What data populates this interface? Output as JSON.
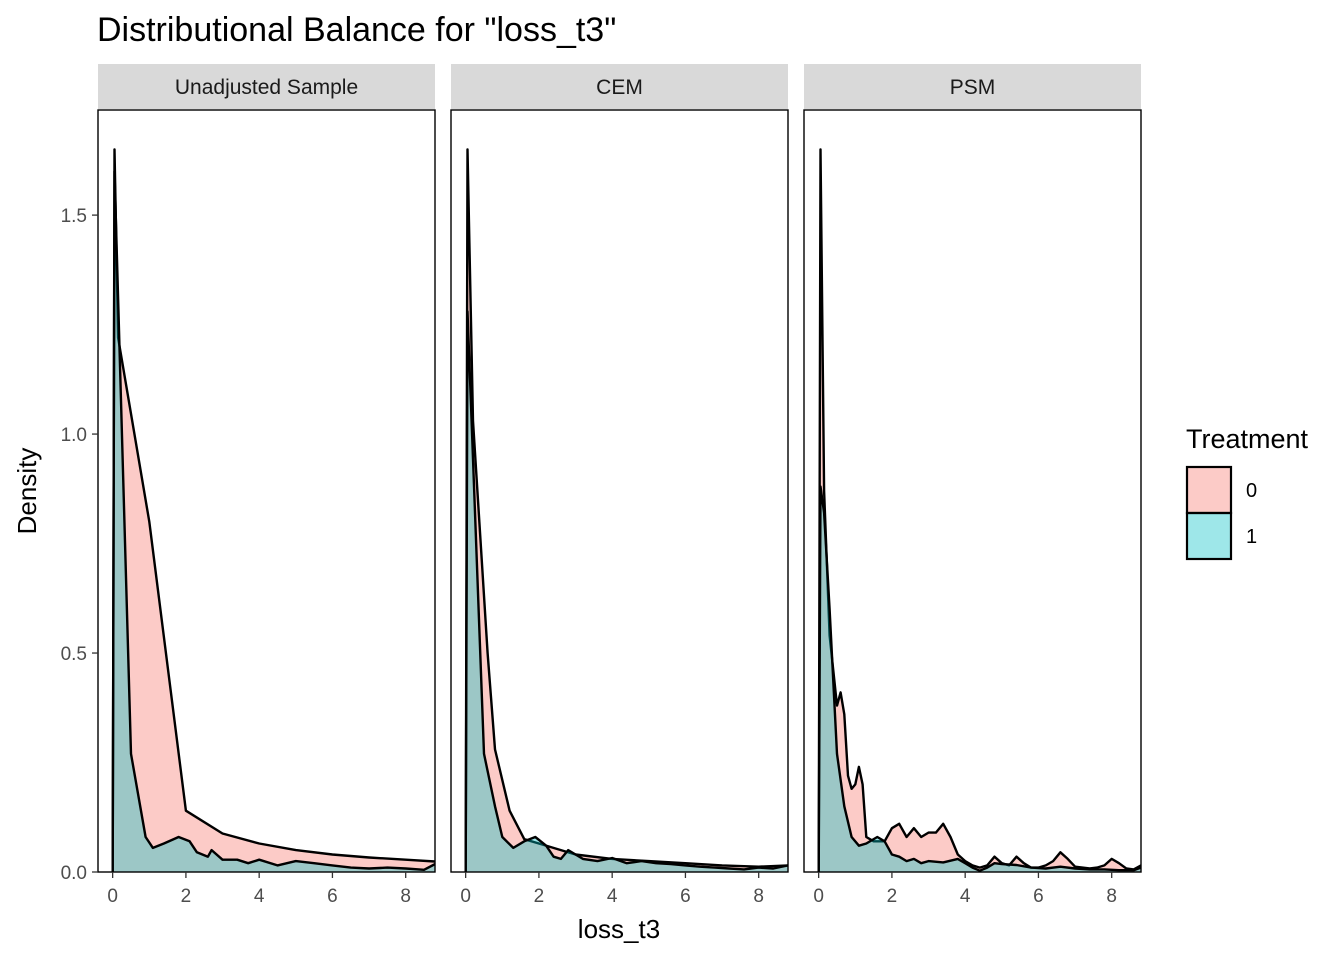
{
  "chart_data": {
    "type": "area",
    "title": "Distributional Balance for \"loss_t3\"",
    "xlabel": "loss_t3",
    "ylabel": "Density",
    "xlim": [
      -0.4,
      8.8
    ],
    "ylim": [
      0,
      1.74
    ],
    "xticks": [
      0,
      2,
      4,
      6,
      8
    ],
    "yticks": [
      0.0,
      0.5,
      1.0,
      1.5
    ],
    "ytick_labels": [
      "0.0",
      "0.5",
      "1.0",
      "1.5"
    ],
    "grid": false,
    "legend": {
      "title": "Treatment",
      "position": "right",
      "entries": [
        {
          "label": "0",
          "color": "#F8766D"
        },
        {
          "label": "1",
          "color": "#00BFC4"
        }
      ]
    },
    "panels": [
      {
        "label": "Unadjusted Sample",
        "series": [
          {
            "name": "0",
            "x": [
              0,
              0.05,
              0.15,
              1,
              2,
              3,
              4,
              5,
              6,
              7,
              8,
              8.8
            ],
            "y": [
              0,
              1.65,
              1.22,
              0.8,
              0.14,
              0.088,
              0.065,
              0.05,
              0.04,
              0.033,
              0.028,
              0.024
            ]
          },
          {
            "name": "1",
            "x": [
              0,
              0.05,
              0.5,
              0.9,
              1.1,
              1.4,
              1.8,
              2.1,
              2.3,
              2.6,
              2.7,
              3.0,
              3.4,
              3.7,
              4.0,
              4.5,
              5.0,
              5.5,
              6.0,
              6.5,
              7.0,
              7.5,
              8.0,
              8.5,
              8.8
            ],
            "y": [
              0,
              1.6,
              0.27,
              0.08,
              0.055,
              0.065,
              0.08,
              0.07,
              0.045,
              0.035,
              0.05,
              0.028,
              0.028,
              0.02,
              0.028,
              0.015,
              0.025,
              0.02,
              0.015,
              0.01,
              0.008,
              0.01,
              0.008,
              0.005,
              0.018
            ]
          }
        ]
      },
      {
        "label": "CEM",
        "series": [
          {
            "name": "0",
            "x": [
              0,
              0.05,
              0.2,
              0.6,
              0.8,
              1.2,
              1.6,
              2.0,
              3.0,
              4.0,
              5.0,
              6.0,
              7.0,
              8.0,
              8.8
            ],
            "y": [
              0,
              1.65,
              1.03,
              0.5,
              0.28,
              0.14,
              0.075,
              0.065,
              0.04,
              0.03,
              0.025,
              0.02,
              0.015,
              0.012,
              0.015
            ]
          },
          {
            "name": "1",
            "x": [
              0,
              0.05,
              0.5,
              0.8,
              1.0,
              1.3,
              1.6,
              1.9,
              2.2,
              2.4,
              2.6,
              2.8,
              3.2,
              3.6,
              4.0,
              4.4,
              4.8,
              5.2,
              5.6,
              6.0,
              6.4,
              6.8,
              7.2,
              7.6,
              8.0,
              8.4,
              8.8
            ],
            "y": [
              0,
              1.28,
              0.27,
              0.15,
              0.08,
              0.055,
              0.07,
              0.08,
              0.06,
              0.035,
              0.03,
              0.05,
              0.03,
              0.025,
              0.032,
              0.02,
              0.025,
              0.02,
              0.018,
              0.015,
              0.012,
              0.01,
              0.008,
              0.006,
              0.01,
              0.008,
              0.015
            ]
          }
        ]
      },
      {
        "label": "PSM",
        "series": [
          {
            "name": "0",
            "x": [
              0,
              0.05,
              0.15,
              0.3,
              0.5,
              0.6,
              0.7,
              0.8,
              0.9,
              1.0,
              1.1,
              1.2,
              1.3,
              1.5,
              1.8,
              2.0,
              2.2,
              2.4,
              2.6,
              2.8,
              3.0,
              3.2,
              3.4,
              3.6,
              3.8,
              4.0,
              4.2,
              4.4,
              4.6,
              4.8,
              5.0,
              5.2,
              5.4,
              5.6,
              5.8,
              6.0,
              6.2,
              6.4,
              6.6,
              6.8,
              7.0,
              7.2,
              7.4,
              7.6,
              7.8,
              8.0,
              8.2,
              8.4,
              8.6,
              8.8
            ],
            "y": [
              0,
              1.65,
              0.87,
              0.54,
              0.38,
              0.41,
              0.36,
              0.22,
              0.19,
              0.2,
              0.24,
              0.2,
              0.08,
              0.07,
              0.07,
              0.1,
              0.11,
              0.08,
              0.1,
              0.08,
              0.09,
              0.09,
              0.11,
              0.08,
              0.04,
              0.025,
              0.015,
              0.01,
              0.015,
              0.035,
              0.02,
              0.015,
              0.035,
              0.02,
              0.01,
              0.01,
              0.015,
              0.025,
              0.045,
              0.03,
              0.012,
              0.01,
              0.008,
              0.01,
              0.015,
              0.03,
              0.02,
              0.008,
              0.006,
              0.015
            ]
          },
          {
            "name": "1",
            "x": [
              0,
              0.05,
              0.15,
              0.3,
              0.5,
              0.7,
              0.9,
              1.1,
              1.3,
              1.6,
              1.8,
              2.0,
              2.2,
              2.4,
              2.6,
              2.8,
              3.0,
              3.4,
              3.8,
              4.0,
              4.2,
              4.4,
              4.6,
              4.8,
              5.0,
              5.4,
              5.8,
              6.2,
              6.6,
              7.0,
              7.4,
              7.8,
              8.2,
              8.6,
              8.8
            ],
            "y": [
              0,
              0.88,
              0.82,
              0.6,
              0.27,
              0.15,
              0.08,
              0.06,
              0.065,
              0.08,
              0.07,
              0.04,
              0.035,
              0.025,
              0.03,
              0.02,
              0.025,
              0.022,
              0.03,
              0.02,
              0.01,
              0.003,
              0.01,
              0.02,
              0.018,
              0.016,
              0.01,
              0.008,
              0.012,
              0.008,
              0.006,
              0.006,
              0.004,
              0.004,
              0.01
            ]
          }
        ]
      }
    ]
  }
}
